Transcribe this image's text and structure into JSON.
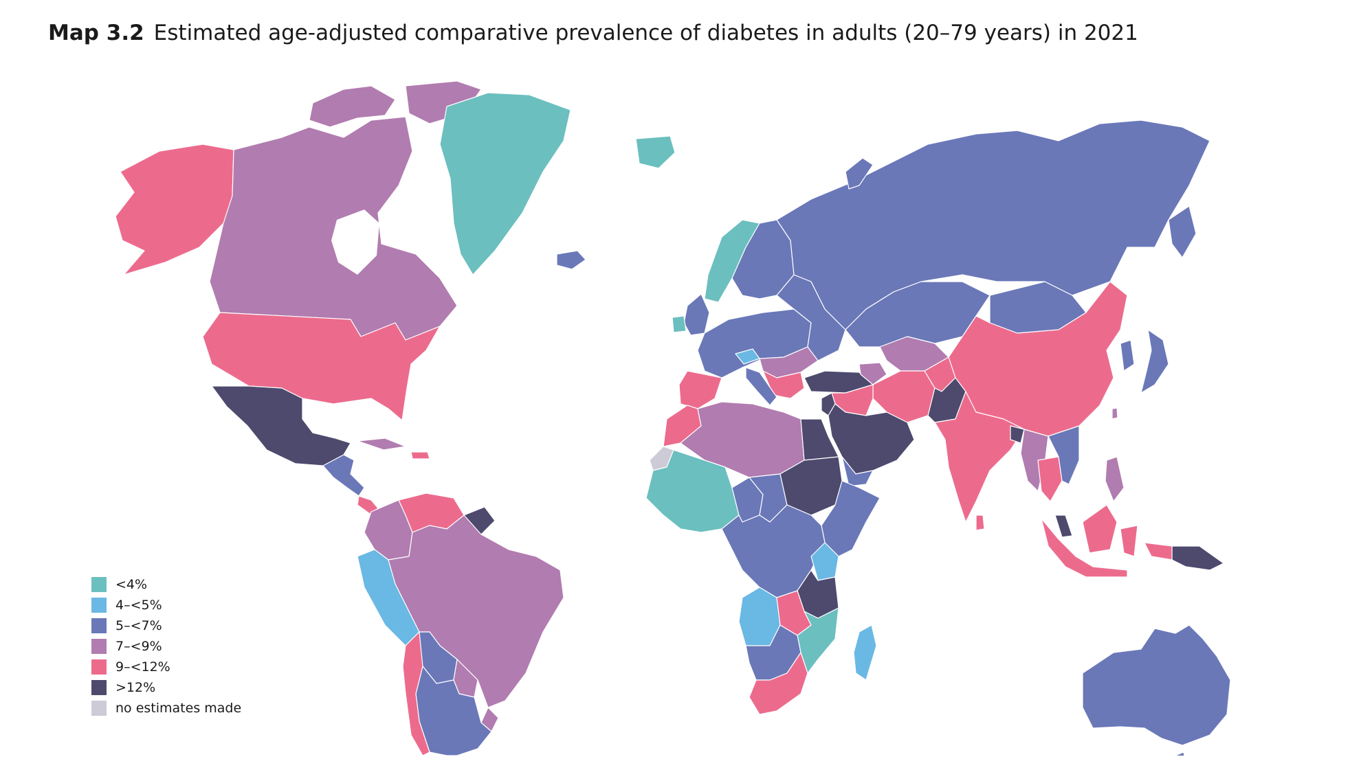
{
  "title": {
    "label": "Map 3.2",
    "text": "Estimated age-adjusted comparative prevalence of diabetes in adults (20–79 years) in 2021"
  },
  "legend": [
    {
      "label": "<4%",
      "color": "#6bbfbf"
    },
    {
      "label": "4–<5%",
      "color": "#6ab8e4"
    },
    {
      "label": "5–<7%",
      "color": "#6a78b8"
    },
    {
      "label": "7–<9%",
      "color": "#b17cb0"
    },
    {
      "label": "9–<12%",
      "color": "#ec6b8d"
    },
    {
      "label": ">12%",
      "color": "#4d4a6e"
    },
    {
      "label": "no estimates made",
      "color": "#cccbd6"
    }
  ]
}
